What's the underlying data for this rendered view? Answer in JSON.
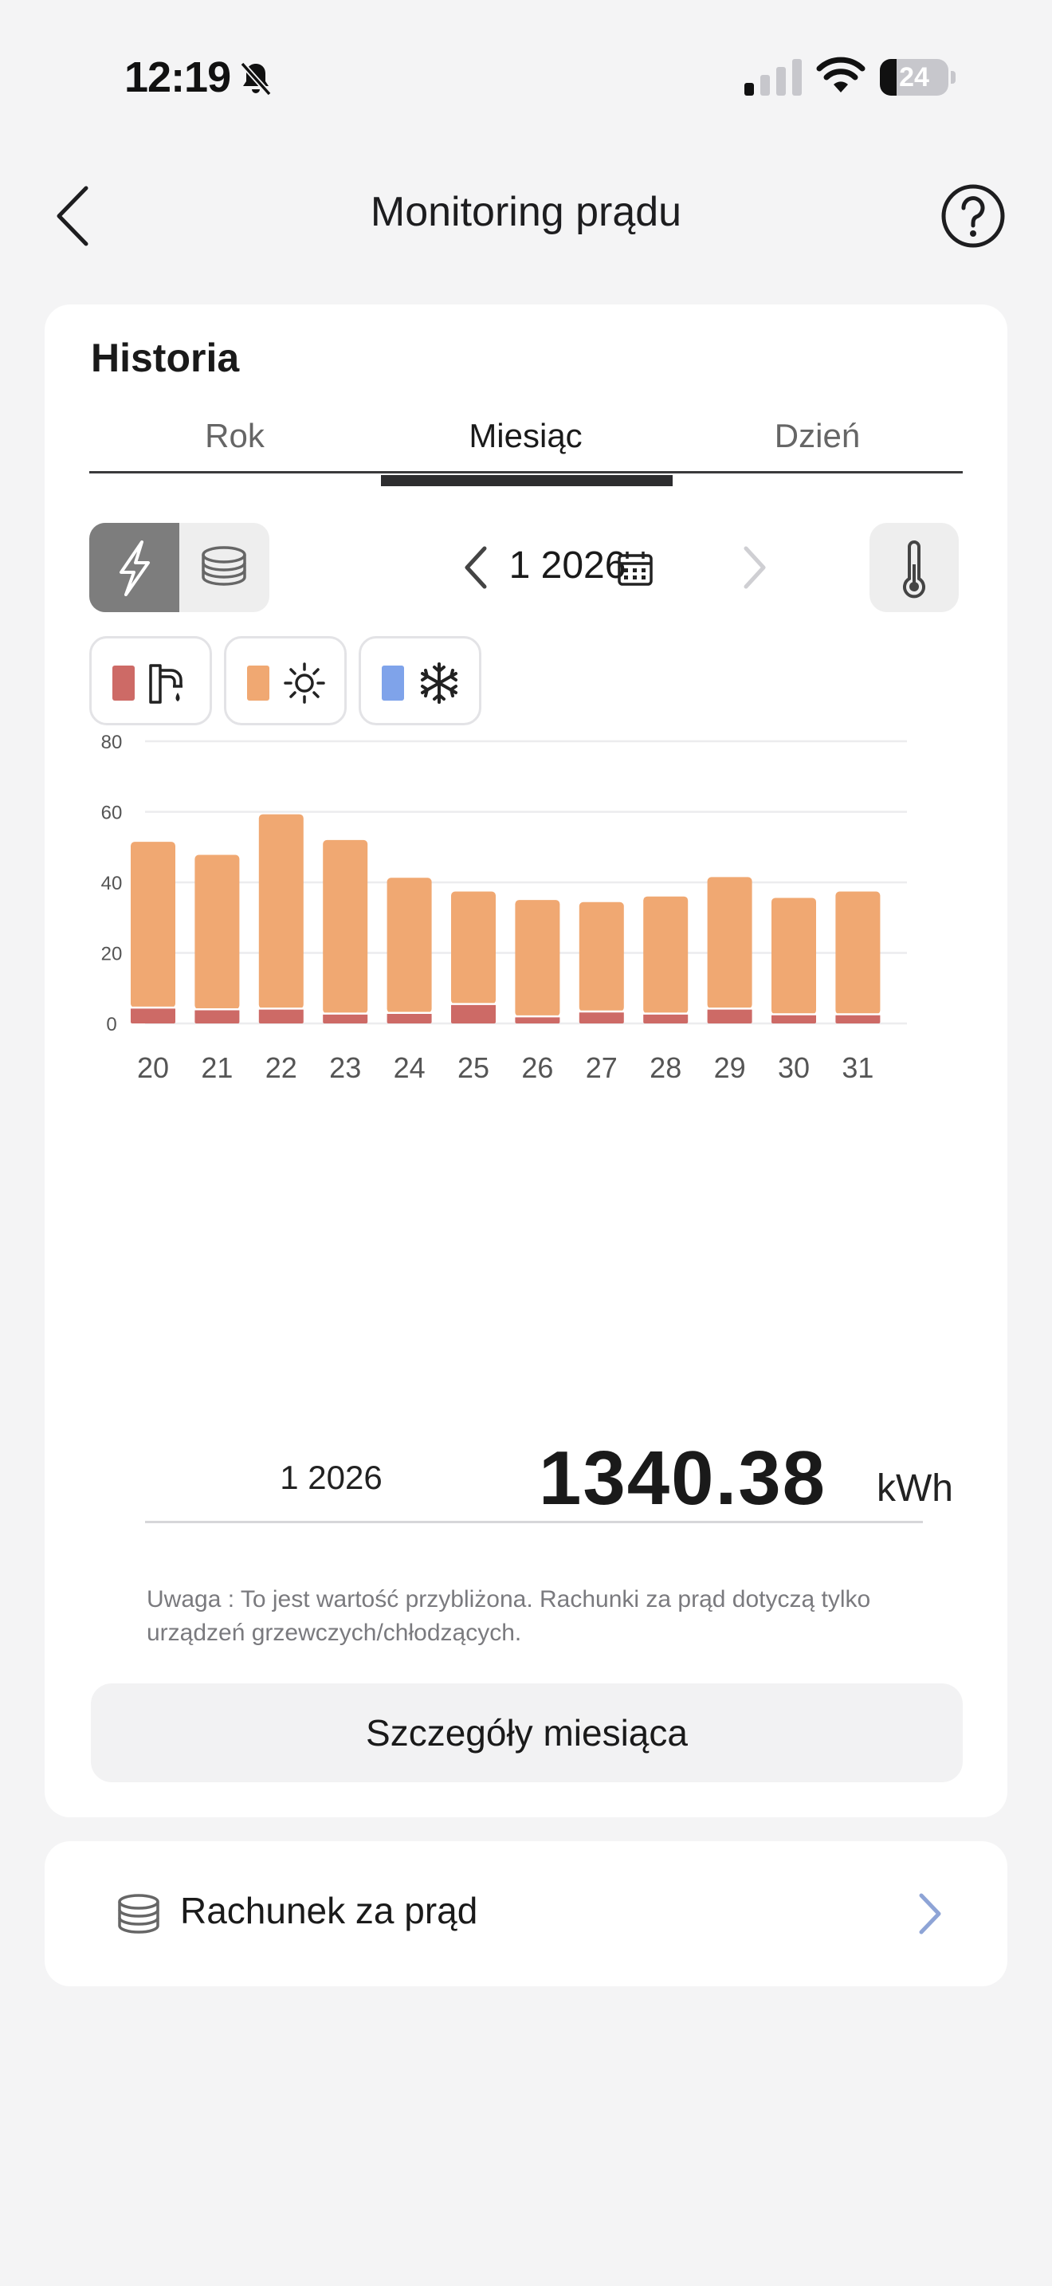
{
  "status": {
    "time": "12:19",
    "battery": "24",
    "battery_level": 0.24
  },
  "nav": {
    "title": "Monitoring prądu"
  },
  "history": {
    "title": "Historia",
    "tabs": [
      {
        "label": "Rok"
      },
      {
        "label": "Miesiąc"
      },
      {
        "label": "Dzień"
      }
    ],
    "active_tab": 1,
    "period_label": "1 2026"
  },
  "legend": [
    {
      "color": "#cd6a66",
      "icon": "water-tap-icon"
    },
    {
      "color": "#f0a872",
      "icon": "sun-icon"
    },
    {
      "color": "#7fa3ea",
      "icon": "snowflake-icon"
    }
  ],
  "chart_data": {
    "type": "bar",
    "stacked": true,
    "ylabel": "kWh",
    "ylim": [
      0,
      80
    ],
    "yticks": [
      0,
      20,
      40,
      60,
      80
    ],
    "grid": true,
    "categories": [
      "20",
      "21",
      "22",
      "23",
      "24",
      "25",
      "26",
      "27",
      "28",
      "29",
      "30",
      "31"
    ],
    "series": [
      {
        "color": "#cd6a66",
        "values": [
          4.5,
          4,
          4.2,
          2.8,
          3,
          5.5,
          2,
          3.4,
          2.8,
          4.2,
          2.6,
          2.6
        ]
      },
      {
        "color": "#f0a872",
        "values": [
          47,
          43.8,
          55.1,
          49.2,
          38.3,
          31.9,
          33,
          31,
          33.2,
          37.3,
          33,
          34.8
        ]
      },
      {
        "color": "#7fa3ea",
        "values": [
          0,
          0,
          0,
          0,
          0,
          0,
          0,
          0,
          0,
          0,
          0,
          0
        ]
      }
    ]
  },
  "summary": {
    "period": "1 2026",
    "value": "1340.38",
    "unit": "kWh",
    "note": "Uwaga : To jest wartość przybliżona. Rachunki za prąd dotyczą tylko urządzeń grzewczych/chłodzących.",
    "details_button": "Szczegóły miesiąca"
  },
  "bill": {
    "label": "Rachunek za prąd"
  }
}
